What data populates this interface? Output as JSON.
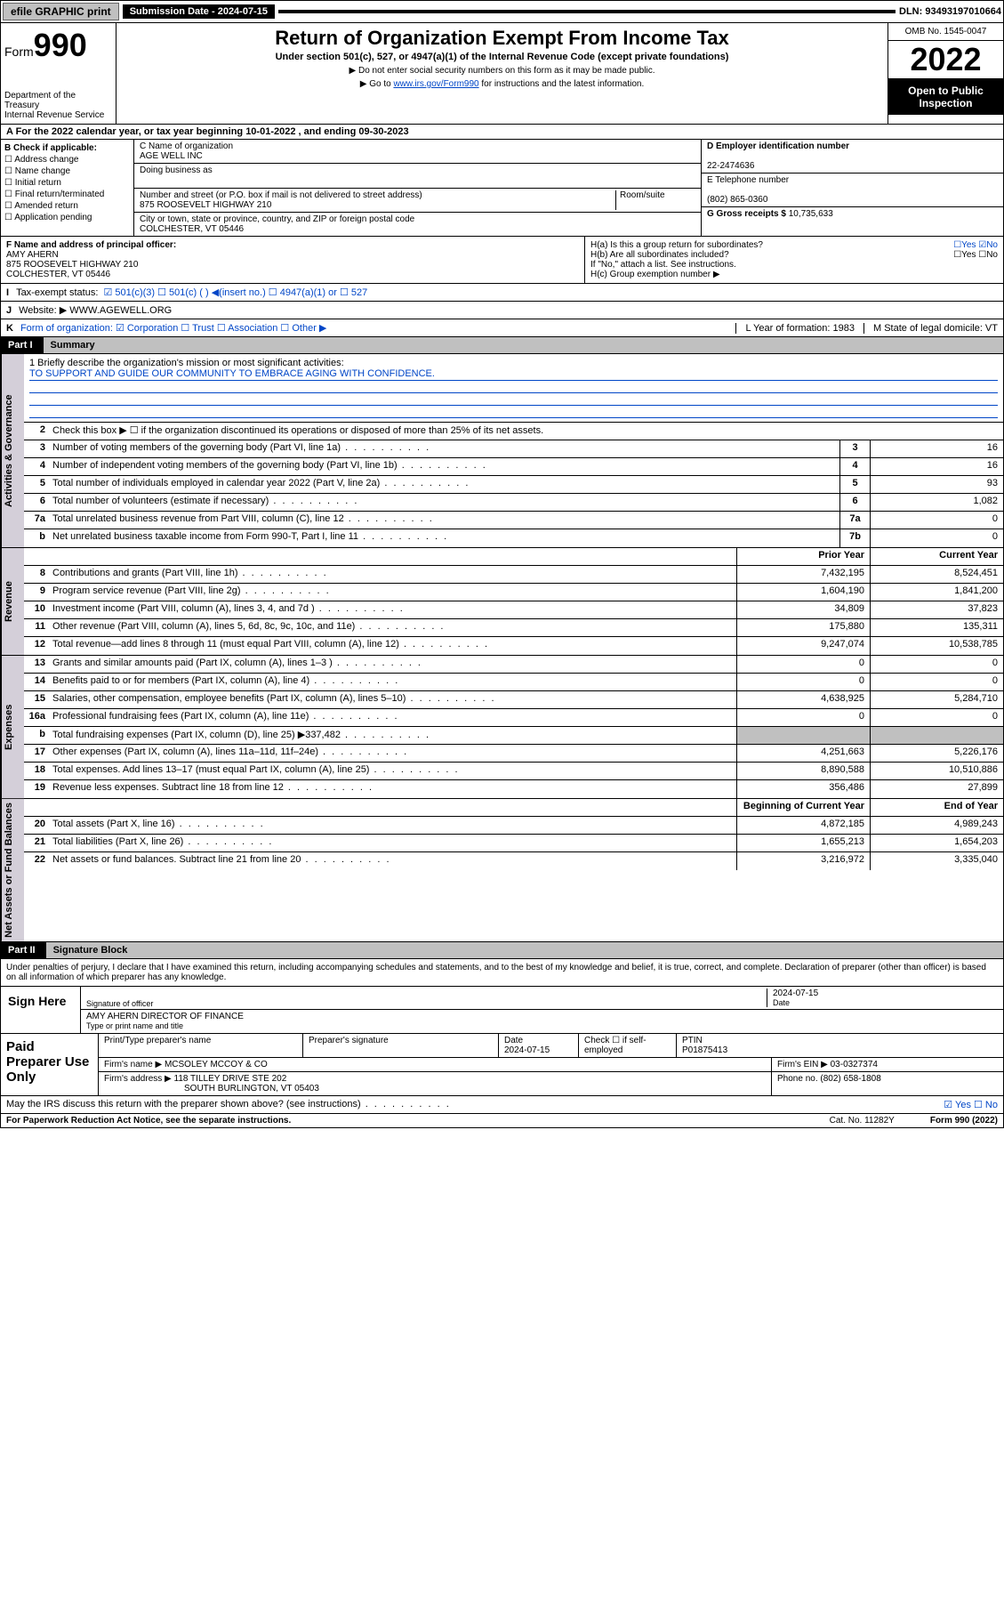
{
  "topbar": {
    "efile": "efile GRAPHIC print",
    "submission_label": "Submission Date - 2024-07-15",
    "dln": "DLN: 93493197010664"
  },
  "header": {
    "form_prefix": "Form",
    "form_num": "990",
    "dept": "Department of the Treasury",
    "irs": "Internal Revenue Service",
    "title": "Return of Organization Exempt From Income Tax",
    "sub": "Under section 501(c), 527, or 4947(a)(1) of the Internal Revenue Code (except private foundations)",
    "note1": "▶ Do not enter social security numbers on this form as it may be made public.",
    "note2_pre": "▶ Go to ",
    "note2_link": "www.irs.gov/Form990",
    "note2_post": " for instructions and the latest information.",
    "omb": "OMB No. 1545-0047",
    "year": "2022",
    "inspect": "Open to Public Inspection"
  },
  "row_a": "A For the 2022 calendar year, or tax year beginning 10-01-2022   , and ending 09-30-2023",
  "col_b": {
    "hdr": "B Check if applicable:",
    "items": [
      "Address change",
      "Name change",
      "Initial return",
      "Final return/terminated",
      "Amended return",
      "Application pending"
    ]
  },
  "col_c": {
    "name_lbl": "C Name of organization",
    "name": "AGE WELL INC",
    "dba_lbl": "Doing business as",
    "addr_lbl": "Number and street (or P.O. box if mail is not delivered to street address)",
    "room_lbl": "Room/suite",
    "addr": "875 ROOSEVELT HIGHWAY 210",
    "city_lbl": "City or town, state or province, country, and ZIP or foreign postal code",
    "city": "COLCHESTER, VT  05446"
  },
  "col_de": {
    "d_lbl": "D Employer identification number",
    "d_val": "22-2474636",
    "e_lbl": "E Telephone number",
    "e_val": "(802) 865-0360",
    "g_lbl": "G Gross receipts $ ",
    "g_val": "10,735,633"
  },
  "fg": {
    "f_lbl": "F Name and address of principal officer:",
    "f_name": "AMY AHERN",
    "f_addr1": "875 ROOSEVELT HIGHWAY 210",
    "f_addr2": "COLCHESTER, VT  05446",
    "ha": "H(a)  Is this a group return for subordinates?",
    "ha_ans": "☐Yes ☑No",
    "hb": "H(b)  Are all subordinates included?",
    "hb_ans": "☐Yes ☐No",
    "hb_note": "If \"No,\" attach a list. See instructions.",
    "hc": "H(c)  Group exemption number ▶"
  },
  "line_i": {
    "lbl": "I",
    "txt": "Tax-exempt status:",
    "opts": "☑ 501(c)(3)   ☐ 501(c) (  ) ◀(insert no.)   ☐ 4947(a)(1) or  ☐ 527"
  },
  "line_j": {
    "lbl": "J",
    "txt": "Website: ▶",
    "val": "WWW.AGEWELL.ORG"
  },
  "line_k": {
    "lbl": "K",
    "txt": "Form of organization:  ☑ Corporation ☐ Trust ☐ Association ☐ Other ▶",
    "l": "L Year of formation: 1983",
    "m": "M State of legal domicile: VT"
  },
  "part1": {
    "pn": "Part I",
    "pt": "Summary"
  },
  "mission": {
    "q": "1  Briefly describe the organization's mission or most significant activities:",
    "a": "TO SUPPORT AND GUIDE OUR COMMUNITY TO EMBRACE AGING WITH CONFIDENCE."
  },
  "gov_lines": [
    {
      "n": "2",
      "t": "Check this box ▶ ☐ if the organization discontinued its operations or disposed of more than 25% of its net assets."
    },
    {
      "n": "3",
      "t": "Number of voting members of the governing body (Part VI, line 1a)",
      "box": "3",
      "v": "16"
    },
    {
      "n": "4",
      "t": "Number of independent voting members of the governing body (Part VI, line 1b)",
      "box": "4",
      "v": "16"
    },
    {
      "n": "5",
      "t": "Total number of individuals employed in calendar year 2022 (Part V, line 2a)",
      "box": "5",
      "v": "93"
    },
    {
      "n": "6",
      "t": "Total number of volunteers (estimate if necessary)",
      "box": "6",
      "v": "1,082"
    },
    {
      "n": "7a",
      "t": "Total unrelated business revenue from Part VIII, column (C), line 12",
      "box": "7a",
      "v": "0"
    },
    {
      "n": "b",
      "t": "Net unrelated business taxable income from Form 990-T, Part I, line 11",
      "box": "7b",
      "v": "0"
    }
  ],
  "col_hdrs": {
    "py": "Prior Year",
    "cy": "Current Year"
  },
  "rev_lines": [
    {
      "n": "8",
      "t": "Contributions and grants (Part VIII, line 1h)",
      "py": "7,432,195",
      "cy": "8,524,451"
    },
    {
      "n": "9",
      "t": "Program service revenue (Part VIII, line 2g)",
      "py": "1,604,190",
      "cy": "1,841,200"
    },
    {
      "n": "10",
      "t": "Investment income (Part VIII, column (A), lines 3, 4, and 7d )",
      "py": "34,809",
      "cy": "37,823"
    },
    {
      "n": "11",
      "t": "Other revenue (Part VIII, column (A), lines 5, 6d, 8c, 9c, 10c, and 11e)",
      "py": "175,880",
      "cy": "135,311"
    },
    {
      "n": "12",
      "t": "Total revenue—add lines 8 through 11 (must equal Part VIII, column (A), line 12)",
      "py": "9,247,074",
      "cy": "10,538,785"
    }
  ],
  "exp_lines": [
    {
      "n": "13",
      "t": "Grants and similar amounts paid (Part IX, column (A), lines 1–3 )",
      "py": "0",
      "cy": "0"
    },
    {
      "n": "14",
      "t": "Benefits paid to or for members (Part IX, column (A), line 4)",
      "py": "0",
      "cy": "0"
    },
    {
      "n": "15",
      "t": "Salaries, other compensation, employee benefits (Part IX, column (A), lines 5–10)",
      "py": "4,638,925",
      "cy": "5,284,710"
    },
    {
      "n": "16a",
      "t": "Professional fundraising fees (Part IX, column (A), line 11e)",
      "py": "0",
      "cy": "0"
    },
    {
      "n": "b",
      "t": "Total fundraising expenses (Part IX, column (D), line 25) ▶337,482",
      "py": "",
      "cy": "",
      "grey": true
    },
    {
      "n": "17",
      "t": "Other expenses (Part IX, column (A), lines 11a–11d, 11f–24e)",
      "py": "4,251,663",
      "cy": "5,226,176"
    },
    {
      "n": "18",
      "t": "Total expenses. Add lines 13–17 (must equal Part IX, column (A), line 25)",
      "py": "8,890,588",
      "cy": "10,510,886"
    },
    {
      "n": "19",
      "t": "Revenue less expenses. Subtract line 18 from line 12",
      "py": "356,486",
      "cy": "27,899"
    }
  ],
  "na_hdrs": {
    "b": "Beginning of Current Year",
    "e": "End of Year"
  },
  "na_lines": [
    {
      "n": "20",
      "t": "Total assets (Part X, line 16)",
      "py": "4,872,185",
      "cy": "4,989,243"
    },
    {
      "n": "21",
      "t": "Total liabilities (Part X, line 26)",
      "py": "1,655,213",
      "cy": "1,654,203"
    },
    {
      "n": "22",
      "t": "Net assets or fund balances. Subtract line 21 from line 20",
      "py": "3,216,972",
      "cy": "3,335,040"
    }
  ],
  "part2": {
    "pn": "Part II",
    "pt": "Signature Block"
  },
  "sig_decl": "Under penalties of perjury, I declare that I have examined this return, including accompanying schedules and statements, and to the best of my knowledge and belief, it is true, correct, and complete. Declaration of preparer (other than officer) is based on all information of which preparer has any knowledge.",
  "sign": {
    "here": "Sign Here",
    "officer_lbl": "Signature of officer",
    "date_lbl": "Date",
    "date": "2024-07-15",
    "name": "AMY AHERN  DIRECTOR OF FINANCE",
    "name_lbl": "Type or print name and title"
  },
  "prep": {
    "hdr": "Paid Preparer Use Only",
    "c1": "Print/Type preparer's name",
    "c2": "Preparer's signature",
    "c3_lbl": "Date",
    "c3": "2024-07-15",
    "c4": "Check ☐ if self-employed",
    "c5_lbl": "PTIN",
    "c5": "P01875413",
    "firm_lbl": "Firm's name    ▶",
    "firm": "MCSOLEY MCCOY & CO",
    "ein_lbl": "Firm's EIN ▶",
    "ein": "03-0327374",
    "addr_lbl": "Firm's address ▶",
    "addr1": "118 TILLEY DRIVE STE 202",
    "addr2": "SOUTH BURLINGTON, VT  05403",
    "phone_lbl": "Phone no.",
    "phone": "(802) 658-1808"
  },
  "discuss": {
    "q": "May the IRS discuss this return with the preparer shown above? (see instructions)",
    "a": "☑ Yes  ☐ No"
  },
  "footer": {
    "l": "For Paperwork Reduction Act Notice, see the separate instructions.",
    "c": "Cat. No. 11282Y",
    "r": "Form 990 (2022)"
  },
  "vtabs": {
    "gov": "Activities & Governance",
    "rev": "Revenue",
    "exp": "Expenses",
    "na": "Net Assets or Fund Balances"
  }
}
